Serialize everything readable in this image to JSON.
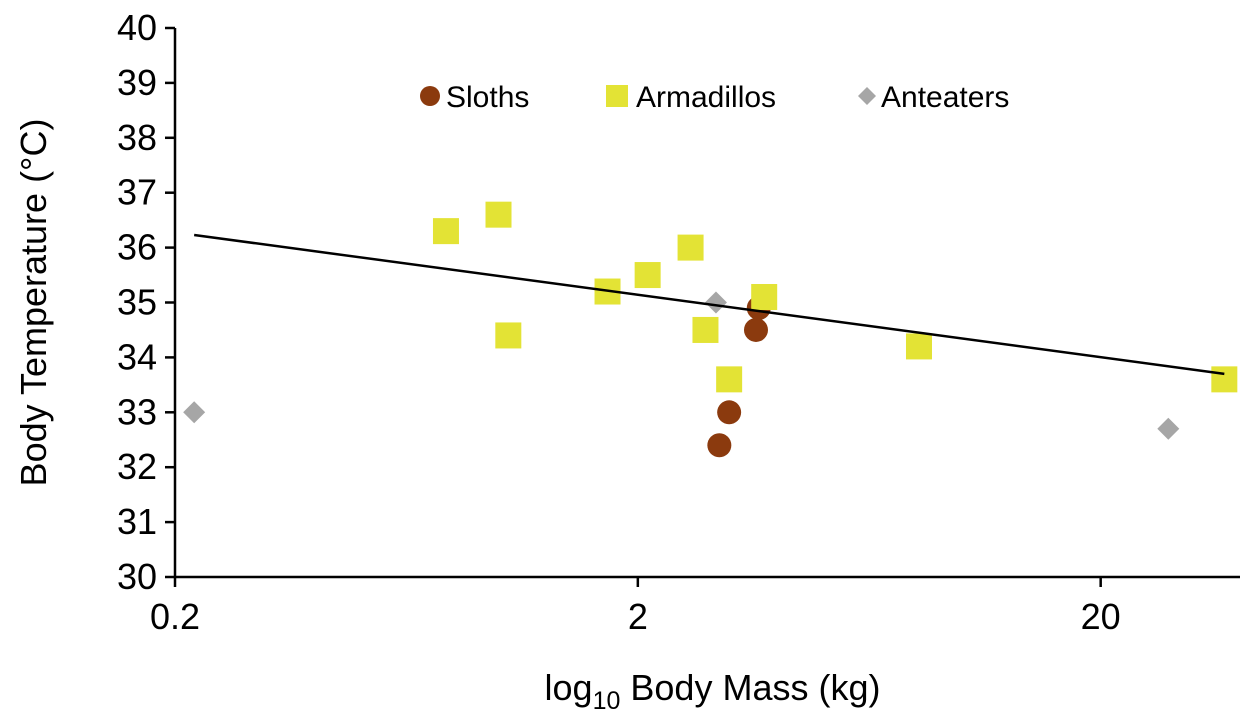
{
  "chart_data": {
    "type": "scatter",
    "title": "",
    "xlabel": {
      "prefix": "log",
      "subscript": "10",
      "suffix": " Body Mass (kg)"
    },
    "ylabel": "Body Temperature (°C)",
    "xscale": "log",
    "xlim": [
      0.2,
      40
    ],
    "ylim": [
      30,
      40
    ],
    "xticks": [
      {
        "value": 0.2,
        "label": "0.2"
      },
      {
        "value": 2,
        "label": "2"
      },
      {
        "value": 20,
        "label": "20"
      }
    ],
    "yticks": [
      {
        "value": 30,
        "label": "30"
      },
      {
        "value": 31,
        "label": "31"
      },
      {
        "value": 32,
        "label": "32"
      },
      {
        "value": 33,
        "label": "33"
      },
      {
        "value": 34,
        "label": "34"
      },
      {
        "value": 35,
        "label": "35"
      },
      {
        "value": 36,
        "label": "36"
      },
      {
        "value": 37,
        "label": "37"
      },
      {
        "value": 38,
        "label": "38"
      },
      {
        "value": 39,
        "label": "39"
      },
      {
        "value": 40,
        "label": "40"
      }
    ],
    "grid": false,
    "legend_position": "top",
    "series": [
      {
        "name": "Sloths",
        "marker": "circle",
        "color": "#8B3A0E",
        "points": [
          {
            "x": 3.0,
            "y": 32.4
          },
          {
            "x": 3.15,
            "y": 33.0
          },
          {
            "x": 3.6,
            "y": 34.5
          },
          {
            "x": 3.65,
            "y": 34.9
          }
        ]
      },
      {
        "name": "Armadillos",
        "marker": "square",
        "color": "#E3E335",
        "points": [
          {
            "x": 0.77,
            "y": 36.3
          },
          {
            "x": 1.0,
            "y": 36.6
          },
          {
            "x": 1.05,
            "y": 34.4
          },
          {
            "x": 1.72,
            "y": 35.2
          },
          {
            "x": 2.1,
            "y": 35.5
          },
          {
            "x": 2.6,
            "y": 36.0
          },
          {
            "x": 2.8,
            "y": 34.5
          },
          {
            "x": 3.15,
            "y": 33.6
          },
          {
            "x": 3.75,
            "y": 35.1
          },
          {
            "x": 8.1,
            "y": 34.2
          },
          {
            "x": 37.0,
            "y": 33.6
          }
        ]
      },
      {
        "name": "Anteaters",
        "marker": "diamond",
        "color": "#A6A6A6",
        "points": [
          {
            "x": 0.22,
            "y": 33.0
          },
          {
            "x": 2.95,
            "y": 35.0
          },
          {
            "x": 28.0,
            "y": 32.7
          }
        ]
      }
    ],
    "trendline": {
      "color": "#000000",
      "points": [
        {
          "x": 0.22,
          "y": 36.23
        },
        {
          "x": 37.0,
          "y": 33.7
        }
      ]
    }
  }
}
